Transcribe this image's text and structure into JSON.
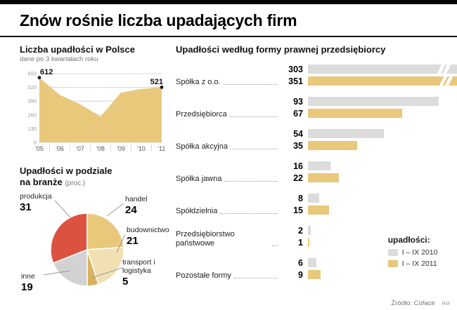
{
  "header": {
    "title": "Znów rośnie liczba upadających firm"
  },
  "footer": {
    "source": "Źródło: Coface",
    "credit": "RM"
  },
  "colors": {
    "gold": "#e9c87c",
    "light_gold": "#f1e0b2",
    "dark_gold": "#d8b35f",
    "red": "#dc5240",
    "gray_bar": "#dcdcdc",
    "gray_slice": "#d2d2d2"
  },
  "area_section": {
    "title": "Liczba upadłości w Polsce",
    "subtitle": "dane po 3 kwartałach roku"
  },
  "pie_section": {
    "title_line1": "Upadłości w podziale",
    "title_line2": "na branże",
    "unit": "(proc.)"
  },
  "bar_section": {
    "title": "Upadłości według formy prawnej przedsiębiorcy",
    "legend_title": "upadłości:",
    "legend": [
      {
        "label": "I – IX 2010",
        "color_key": "gray_bar"
      },
      {
        "label": "I – IX 2011",
        "color_key": "gold"
      }
    ]
  },
  "chart_data": [
    {
      "type": "area",
      "title": "Liczba upadłości w Polsce",
      "subtitle": "dane po 3 kwartałach roku",
      "x": [
        "'05",
        "'06",
        "'07",
        "'08",
        "'09",
        "'10",
        "'11"
      ],
      "values": [
        612,
        450,
        360,
        245,
        470,
        505,
        521
      ],
      "yticks": [
        650,
        520,
        390,
        260,
        130,
        0
      ],
      "ylim": [
        0,
        650
      ],
      "labeled_points": [
        0,
        6
      ],
      "fill_color_key": "gold"
    },
    {
      "type": "pie",
      "title": "Upadłości w podziale na branże (proc.)",
      "start_angle_deg": 248.4,
      "slices": [
        {
          "label": "produkcja",
          "value": 31,
          "color_key": "red"
        },
        {
          "label": "handel",
          "value": 24,
          "color_key": "gold"
        },
        {
          "label": "budownictwo",
          "value": 21,
          "color_key": "light_gold"
        },
        {
          "label": "transport i logistyka",
          "value": 5,
          "color_key": "dark_gold"
        },
        {
          "label": "inne",
          "value": 19,
          "color_key": "gray_slice"
        }
      ]
    },
    {
      "type": "bar",
      "orientation": "horizontal",
      "title": "Upadłości według formy prawnej przedsiębiorcy",
      "categories": [
        "Spółka z o.o.",
        "Przedsiębiorca",
        "Spółka akcyjna",
        "Spółka jawna",
        "Spółdzielnia",
        "Przedsiębiorstwo państwowe",
        "Pozostałe formy"
      ],
      "series": [
        {
          "name": "I – IX 2010",
          "color_key": "gray_bar",
          "values": [
            303,
            93,
            54,
            16,
            8,
            2,
            6
          ]
        },
        {
          "name": "I – IX 2011",
          "color_key": "gold",
          "values": [
            351,
            67,
            35,
            22,
            15,
            1,
            9
          ]
        }
      ]
    }
  ]
}
